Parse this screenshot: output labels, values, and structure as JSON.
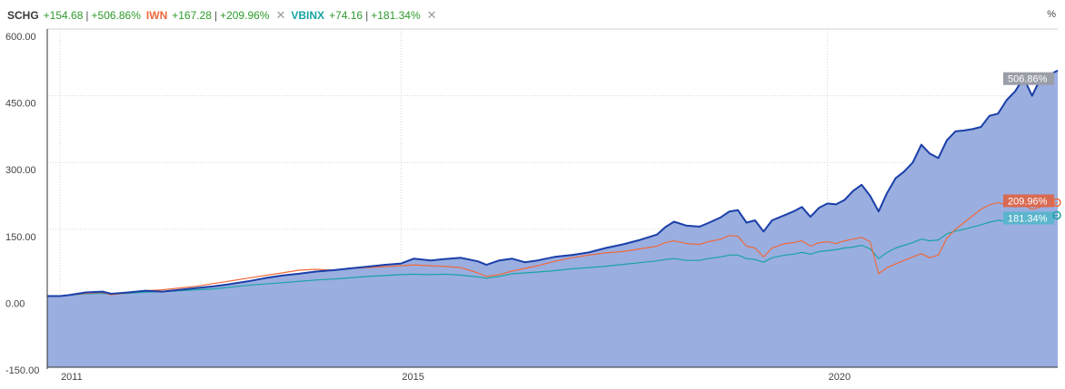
{
  "legend": {
    "items": [
      {
        "symbol": "SCHG",
        "change": "+154.68",
        "percent": "+506.86%",
        "color": "#2a2a2a"
      },
      {
        "symbol": "IWN",
        "change": "+167.28",
        "percent": "+209.96%",
        "color": "#ee6a3c"
      },
      {
        "symbol": "VBINX",
        "change": "+74.16",
        "percent": "+181.34%",
        "color": "#1aa3a3"
      }
    ],
    "close_glyph": "✕",
    "unit_label": "%"
  },
  "chart_data": {
    "type": "line",
    "ylim": [
      -160,
      600
    ],
    "xlim": [
      2010.85,
      2021.7
    ],
    "yticks": [
      {
        "value": 600,
        "label": "600.00"
      },
      {
        "value": 450,
        "label": "450.00"
      },
      {
        "value": 300,
        "label": "300.00"
      },
      {
        "value": 150,
        "label": "150.00"
      },
      {
        "value": 0,
        "label": "0.00"
      },
      {
        "value": -150,
        "label": "-150.00"
      }
    ],
    "xticks": [
      {
        "value": 2011,
        "label": "2011"
      },
      {
        "value": 2015,
        "label": "2015"
      },
      {
        "value": 2020,
        "label": "2020"
      }
    ],
    "series": [
      {
        "name": "SCHG",
        "color": "#1a3fa8",
        "fill": "#9aaee0",
        "end_label": "506.86%",
        "end_label_bg": "#9a9ea8",
        "points": [
          [
            2010.85,
            0
          ],
          [
            2011.0,
            0
          ],
          [
            2011.1,
            2
          ],
          [
            2011.3,
            8
          ],
          [
            2011.5,
            10
          ],
          [
            2011.6,
            5
          ],
          [
            2011.8,
            8
          ],
          [
            2012.0,
            12
          ],
          [
            2012.2,
            10
          ],
          [
            2012.4,
            14
          ],
          [
            2012.6,
            18
          ],
          [
            2012.8,
            22
          ],
          [
            2013.0,
            27
          ],
          [
            2013.2,
            33
          ],
          [
            2013.4,
            40
          ],
          [
            2013.6,
            46
          ],
          [
            2013.8,
            50
          ],
          [
            2014.0,
            55
          ],
          [
            2014.2,
            58
          ],
          [
            2014.4,
            62
          ],
          [
            2014.6,
            66
          ],
          [
            2014.8,
            70
          ],
          [
            2015.0,
            73
          ],
          [
            2015.15,
            84
          ],
          [
            2015.35,
            80
          ],
          [
            2015.5,
            83
          ],
          [
            2015.7,
            86
          ],
          [
            2015.9,
            78
          ],
          [
            2016.0,
            70
          ],
          [
            2016.15,
            80
          ],
          [
            2016.3,
            84
          ],
          [
            2016.45,
            76
          ],
          [
            2016.6,
            80
          ],
          [
            2016.8,
            88
          ],
          [
            2017.0,
            92
          ],
          [
            2017.2,
            98
          ],
          [
            2017.4,
            108
          ],
          [
            2017.6,
            116
          ],
          [
            2017.8,
            126
          ],
          [
            2018.0,
            138
          ],
          [
            2018.1,
            155
          ],
          [
            2018.2,
            167
          ],
          [
            2018.35,
            158
          ],
          [
            2018.5,
            156
          ],
          [
            2018.6,
            164
          ],
          [
            2018.75,
            177
          ],
          [
            2018.85,
            190
          ],
          [
            2018.95,
            193
          ],
          [
            2019.05,
            165
          ],
          [
            2019.15,
            170
          ],
          [
            2019.25,
            145
          ],
          [
            2019.35,
            170
          ],
          [
            2019.5,
            182
          ],
          [
            2019.6,
            190
          ],
          [
            2019.7,
            200
          ],
          [
            2019.8,
            178
          ],
          [
            2019.9,
            198
          ],
          [
            2020.0,
            208
          ],
          [
            2020.1,
            206
          ],
          [
            2020.2,
            216
          ],
          [
            2020.3,
            236
          ],
          [
            2020.4,
            250
          ],
          [
            2020.5,
            225
          ],
          [
            2020.6,
            190
          ],
          [
            2020.7,
            232
          ],
          [
            2020.8,
            265
          ],
          [
            2020.9,
            280
          ],
          [
            2021.0,
            300
          ],
          [
            2021.1,
            340
          ],
          [
            2021.2,
            320
          ],
          [
            2021.3,
            310
          ],
          [
            2021.4,
            350
          ],
          [
            2021.5,
            370
          ],
          [
            2021.6,
            372
          ],
          [
            2021.7,
            375
          ],
          [
            2021.8,
            380
          ],
          [
            2021.9,
            405
          ],
          [
            2022.0,
            410
          ],
          [
            2022.1,
            440
          ],
          [
            2022.2,
            460
          ],
          [
            2022.3,
            490
          ],
          [
            2022.4,
            450
          ],
          [
            2022.5,
            490
          ],
          [
            2022.6,
            497
          ],
          [
            2022.7,
            506.86
          ]
        ]
      },
      {
        "name": "IWN",
        "color": "#ee6a3c",
        "end_label": "209.96%",
        "end_label_bg": "#d96a52",
        "points": [
          [
            2010.85,
            0
          ],
          [
            2011.0,
            0
          ],
          [
            2011.1,
            2
          ],
          [
            2011.3,
            6
          ],
          [
            2011.5,
            8
          ],
          [
            2011.6,
            3
          ],
          [
            2011.8,
            7
          ],
          [
            2012.0,
            12
          ],
          [
            2012.2,
            14
          ],
          [
            2012.4,
            18
          ],
          [
            2012.6,
            22
          ],
          [
            2012.8,
            28
          ],
          [
            2013.0,
            34
          ],
          [
            2013.2,
            40
          ],
          [
            2013.4,
            46
          ],
          [
            2013.6,
            52
          ],
          [
            2013.8,
            58
          ],
          [
            2014.0,
            60
          ],
          [
            2014.2,
            58
          ],
          [
            2014.4,
            62
          ],
          [
            2014.6,
            64
          ],
          [
            2014.8,
            66
          ],
          [
            2015.0,
            68
          ],
          [
            2015.15,
            70
          ],
          [
            2015.35,
            68
          ],
          [
            2015.5,
            67
          ],
          [
            2015.7,
            64
          ],
          [
            2015.9,
            52
          ],
          [
            2016.0,
            44
          ],
          [
            2016.15,
            48
          ],
          [
            2016.3,
            56
          ],
          [
            2016.45,
            62
          ],
          [
            2016.6,
            68
          ],
          [
            2016.8,
            78
          ],
          [
            2017.0,
            86
          ],
          [
            2017.2,
            92
          ],
          [
            2017.4,
            97
          ],
          [
            2017.6,
            100
          ],
          [
            2017.8,
            106
          ],
          [
            2018.0,
            112
          ],
          [
            2018.1,
            120
          ],
          [
            2018.2,
            124
          ],
          [
            2018.35,
            118
          ],
          [
            2018.5,
            116
          ],
          [
            2018.6,
            122
          ],
          [
            2018.75,
            128
          ],
          [
            2018.85,
            136
          ],
          [
            2018.95,
            134
          ],
          [
            2019.05,
            112
          ],
          [
            2019.15,
            108
          ],
          [
            2019.25,
            88
          ],
          [
            2019.35,
            108
          ],
          [
            2019.5,
            118
          ],
          [
            2019.6,
            120
          ],
          [
            2019.7,
            124
          ],
          [
            2019.8,
            112
          ],
          [
            2019.9,
            120
          ],
          [
            2020.0,
            122
          ],
          [
            2020.1,
            118
          ],
          [
            2020.2,
            124
          ],
          [
            2020.3,
            128
          ],
          [
            2020.4,
            132
          ],
          [
            2020.5,
            122
          ],
          [
            2020.6,
            50
          ],
          [
            2020.7,
            64
          ],
          [
            2020.8,
            72
          ],
          [
            2020.9,
            80
          ],
          [
            2021.0,
            88
          ],
          [
            2021.1,
            95
          ],
          [
            2021.2,
            86
          ],
          [
            2021.3,
            92
          ],
          [
            2021.4,
            130
          ],
          [
            2021.5,
            150
          ],
          [
            2021.6,
            165
          ],
          [
            2021.7,
            180
          ],
          [
            2021.8,
            195
          ],
          [
            2021.9,
            205
          ],
          [
            2022.0,
            210
          ],
          [
            2022.1,
            205
          ],
          [
            2022.2,
            200
          ],
          [
            2022.3,
            204
          ],
          [
            2022.4,
            195
          ],
          [
            2022.5,
            200
          ],
          [
            2022.6,
            206
          ],
          [
            2022.7,
            209.96
          ]
        ]
      },
      {
        "name": "VBINX",
        "color": "#1aa3a3",
        "end_label": "181.34%",
        "end_label_bg": "#5bb5cc",
        "points": [
          [
            2010.85,
            0
          ],
          [
            2011.0,
            0
          ],
          [
            2011.1,
            2
          ],
          [
            2011.3,
            5
          ],
          [
            2011.5,
            6
          ],
          [
            2011.6,
            4
          ],
          [
            2011.8,
            6
          ],
          [
            2012.0,
            9
          ],
          [
            2012.2,
            10
          ],
          [
            2012.4,
            12
          ],
          [
            2012.6,
            14
          ],
          [
            2012.8,
            16
          ],
          [
            2013.0,
            20
          ],
          [
            2013.2,
            24
          ],
          [
            2013.4,
            27
          ],
          [
            2013.6,
            30
          ],
          [
            2013.8,
            33
          ],
          [
            2014.0,
            36
          ],
          [
            2014.2,
            38
          ],
          [
            2014.4,
            41
          ],
          [
            2014.6,
            44
          ],
          [
            2014.8,
            46
          ],
          [
            2015.0,
            48
          ],
          [
            2015.15,
            49
          ],
          [
            2015.35,
            48
          ],
          [
            2015.5,
            49
          ],
          [
            2015.7,
            47
          ],
          [
            2015.9,
            43
          ],
          [
            2016.0,
            40
          ],
          [
            2016.15,
            44
          ],
          [
            2016.3,
            50
          ],
          [
            2016.45,
            52
          ],
          [
            2016.6,
            54
          ],
          [
            2016.8,
            57
          ],
          [
            2017.0,
            61
          ],
          [
            2017.2,
            64
          ],
          [
            2017.4,
            67
          ],
          [
            2017.6,
            71
          ],
          [
            2017.8,
            75
          ],
          [
            2018.0,
            79
          ],
          [
            2018.1,
            82
          ],
          [
            2018.2,
            84
          ],
          [
            2018.35,
            80
          ],
          [
            2018.5,
            80
          ],
          [
            2018.6,
            84
          ],
          [
            2018.75,
            88
          ],
          [
            2018.85,
            92
          ],
          [
            2018.95,
            92
          ],
          [
            2019.05,
            84
          ],
          [
            2019.15,
            82
          ],
          [
            2019.25,
            76
          ],
          [
            2019.35,
            86
          ],
          [
            2019.5,
            92
          ],
          [
            2019.6,
            94
          ],
          [
            2019.7,
            98
          ],
          [
            2019.8,
            94
          ],
          [
            2019.9,
            100
          ],
          [
            2020.0,
            102
          ],
          [
            2020.1,
            104
          ],
          [
            2020.2,
            108
          ],
          [
            2020.3,
            110
          ],
          [
            2020.4,
            114
          ],
          [
            2020.5,
            106
          ],
          [
            2020.6,
            84
          ],
          [
            2020.7,
            98
          ],
          [
            2020.8,
            108
          ],
          [
            2020.9,
            114
          ],
          [
            2021.0,
            120
          ],
          [
            2021.1,
            128
          ],
          [
            2021.2,
            124
          ],
          [
            2021.3,
            126
          ],
          [
            2021.4,
            140
          ],
          [
            2021.5,
            146
          ],
          [
            2021.6,
            150
          ],
          [
            2021.7,
            155
          ],
          [
            2021.8,
            160
          ],
          [
            2021.9,
            166
          ],
          [
            2022.0,
            170
          ],
          [
            2022.1,
            168
          ],
          [
            2022.2,
            170
          ],
          [
            2022.3,
            176
          ],
          [
            2022.4,
            172
          ],
          [
            2022.5,
            176
          ],
          [
            2022.6,
            179
          ],
          [
            2022.7,
            181.34
          ]
        ]
      }
    ]
  }
}
